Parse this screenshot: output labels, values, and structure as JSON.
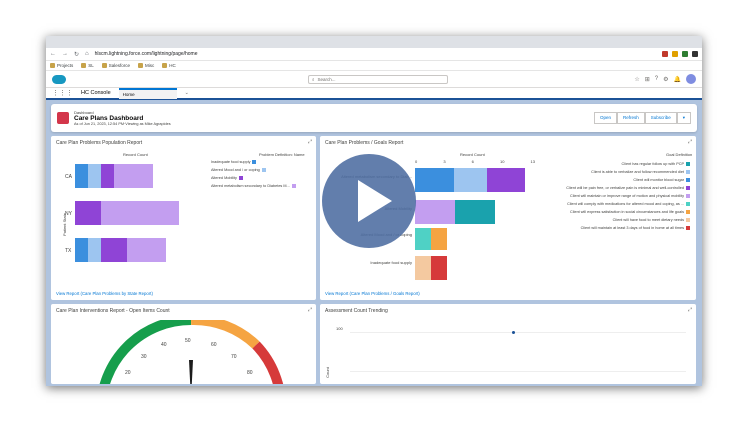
{
  "browser": {
    "url": "hlscm.lightning.force.com/lightning/page/home",
    "bookmarks": [
      "Projects",
      "SL",
      "Salesforce",
      "Misc",
      "HC"
    ]
  },
  "header": {
    "search_placeholder": "Search...",
    "app_name": "HC Console",
    "tab_label": "Home"
  },
  "dashboard": {
    "subtitle": "Dashboard",
    "title": "Care Plans Dashboard",
    "meta": "As of Jun 21, 2023, 12:54 PM·Viewing as Mike Agrapides",
    "buttons": [
      "Open",
      "Refresh",
      "Subscribe"
    ]
  },
  "card1": {
    "title": "Care Plan Problems Population Report",
    "xaxis": "Record Count",
    "legend_title": "Problem Definition: Name",
    "legend": [
      "Inadequate food supply",
      "Altered Mood and / or coping",
      "Altered Mobility",
      "Altered metabolism secondary to Diabetes M..."
    ],
    "yaxis": "Patient State",
    "rows": [
      "CA",
      "NY",
      "TX"
    ],
    "link": "View Report (Care Plan Problems by State Report)"
  },
  "card2": {
    "title": "Care Plan Problems / Goals Report",
    "xaxis": "Record Count",
    "ticks": [
      "0",
      "3",
      "6",
      "10",
      "13"
    ],
    "legend_title": "Goal Definition",
    "legend": [
      "Client has regular follow up with PCP",
      "Client is able to verbalize and follow recommended diet",
      "Client will monitor blood sugar",
      "Client will be pain free, or verbalize pain is minimal and well-controlled",
      "Client will maintain or improve range of motion and physical mobility",
      "Client will comply with medications for altered mood and coping, as ...",
      "Client will express satisfaction in social circumstances and life goals",
      "Client will have food to meet dietary needs",
      "Client will maintain at least 3 days of food in home at all times"
    ],
    "rows": [
      "Altered metabolism secondary to Diab...",
      "Altered Mobility",
      "Altered Mood and / or coping",
      "Inadequate food supply"
    ],
    "link": "View Report (Care Plan Problems / Goals Report)"
  },
  "card3": {
    "title": "Care Plan Interventions Report - Open Items Count",
    "gauge_labels": [
      "50",
      "40",
      "60",
      "30",
      "70",
      "20",
      "80"
    ]
  },
  "card4": {
    "title": "Assessment Count Trending",
    "y_tick": "100",
    "y_label": "Count"
  },
  "colors": {
    "c1": "#3b8fde",
    "c2": "#9dc5f0",
    "c3": "#8f44d6",
    "c4": "#c39ef0",
    "g1": "#1aa2ad",
    "g2": "#f5a442",
    "g3": "#f4c9a0",
    "red": "#d63a3a"
  },
  "chart_data": [
    {
      "type": "bar",
      "title": "Care Plan Problems Population Report",
      "categories": [
        "CA",
        "NY",
        "TX"
      ],
      "series": [
        {
          "name": "Inadequate food supply",
          "values": [
            1,
            0,
            1
          ]
        },
        {
          "name": "Altered Mood and / or coping",
          "values": [
            1,
            0,
            1
          ]
        },
        {
          "name": "Altered Mobility",
          "values": [
            1,
            2,
            2
          ]
        },
        {
          "name": "Altered metabolism secondary to Diabetes M...",
          "values": [
            3,
            6,
            3
          ]
        }
      ]
    }
  ]
}
